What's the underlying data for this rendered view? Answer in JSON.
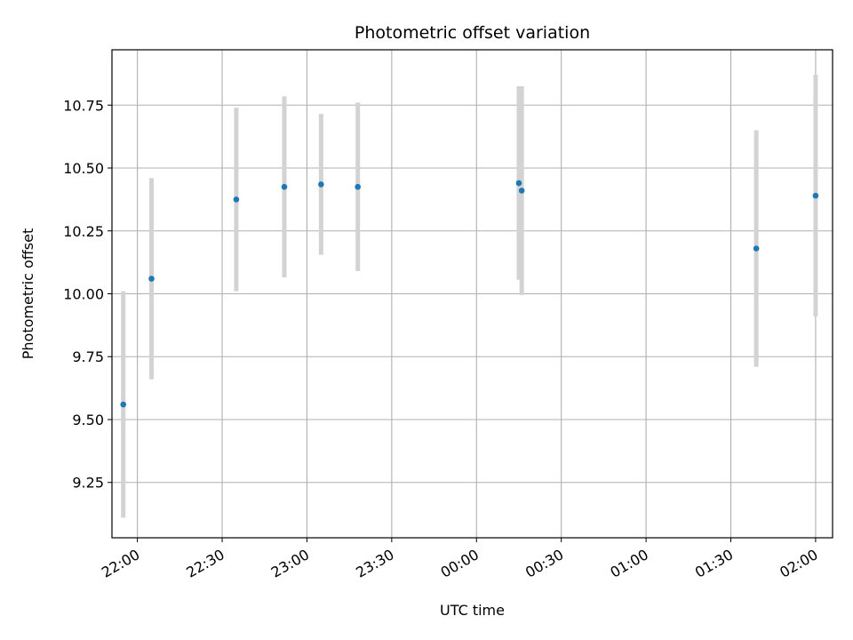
{
  "chart_data": {
    "type": "scatter",
    "title": "Photometric offset variation",
    "xlabel": "UTC time",
    "ylabel": "Photometric offset",
    "xlim": [
      "21:51",
      "02:06"
    ],
    "ylim": [
      9.03,
      10.97
    ],
    "x_ticks": [
      "22:00",
      "22:30",
      "23:00",
      "23:30",
      "00:00",
      "00:30",
      "01:00",
      "01:30",
      "02:00"
    ],
    "y_ticks": [
      "9.25",
      "9.50",
      "9.75",
      "10.00",
      "10.25",
      "10.50",
      "10.75"
    ],
    "grid": true,
    "points": [
      {
        "x": "21:55",
        "y": 9.56,
        "err": 0.45
      },
      {
        "x": "22:05",
        "y": 10.06,
        "err": 0.4
      },
      {
        "x": "22:35",
        "y": 10.375,
        "err": 0.365
      },
      {
        "x": "22:52",
        "y": 10.425,
        "err": 0.36
      },
      {
        "x": "23:05",
        "y": 10.435,
        "err": 0.28
      },
      {
        "x": "23:18",
        "y": 10.425,
        "err": 0.335
      },
      {
        "x": "00:15",
        "y": 10.44,
        "err": 0.385
      },
      {
        "x": "00:16",
        "y": 10.41,
        "err": 0.415
      },
      {
        "x": "01:39",
        "y": 10.18,
        "err": 0.47
      },
      {
        "x": "02:00",
        "y": 10.39,
        "err": 0.48
      }
    ],
    "colors": {
      "marker": "#1f77b4",
      "errorbar": "#d3d3d3",
      "grid": "#b0b0b0"
    }
  }
}
